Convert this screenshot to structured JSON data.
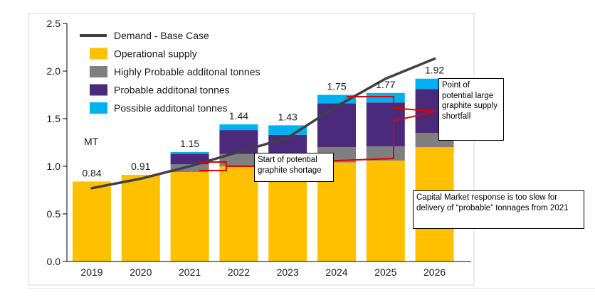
{
  "chart_data": {
    "type": "bar",
    "stacked": true,
    "categories": [
      "2019",
      "2020",
      "2021",
      "2022",
      "2023",
      "2024",
      "2025",
      "2026"
    ],
    "series": [
      {
        "name": "Operational supply",
        "color": "#ffc000",
        "values": [
          0.84,
          0.91,
          0.94,
          1.0,
          1.02,
          1.04,
          1.06,
          1.2
        ]
      },
      {
        "name": "Highly Probable additonal tonnes",
        "color": "#7f7f7f",
        "values": [
          0.0,
          0.0,
          0.08,
          0.13,
          0.11,
          0.16,
          0.15,
          0.15
        ]
      },
      {
        "name": "Probable additonal tonnes",
        "color": "#4b2a7b",
        "values": [
          0.0,
          0.0,
          0.11,
          0.25,
          0.2,
          0.46,
          0.46,
          0.46
        ]
      },
      {
        "name": "Possible additonal tonnes",
        "color": "#00b0f0",
        "values": [
          0.0,
          0.0,
          0.02,
          0.06,
          0.1,
          0.09,
          0.1,
          0.11
        ]
      }
    ],
    "totals": [
      "0.84",
      "0.91",
      "1.15",
      "1.44",
      "1.43",
      "1.75",
      "1.77",
      "1.92"
    ],
    "line_series": {
      "name": "Demand - Base Case",
      "color": "#404040",
      "values": [
        0.77,
        0.87,
        1.0,
        1.15,
        1.3,
        1.63,
        1.92,
        2.13
      ]
    },
    "ylim": [
      0,
      2.5
    ],
    "yticks": [
      "0.0",
      "0.5",
      "1.0",
      "1.5",
      "2.0",
      "2.5"
    ],
    "ylabel": "MT",
    "legend_position": "top-left",
    "grid": false
  },
  "annotations": {
    "start_shortage": "Start of potential graphite shortage",
    "large_shortfall": "Point of potential large graphite supply shortfall",
    "capital_market": "Capital Market response is too slow for delivery of “probable” tonnages from 2021",
    "arrow_color": "#e00000"
  }
}
